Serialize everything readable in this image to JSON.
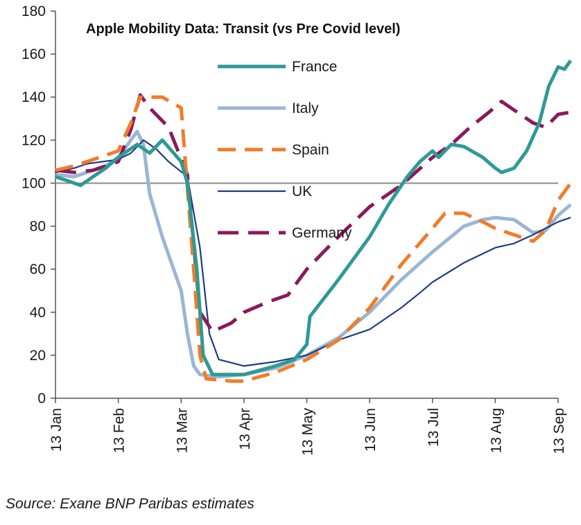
{
  "chart_data": {
    "type": "line",
    "title": "Apple Mobility Data: Transit (vs Pre Covid level)",
    "xlabel": "",
    "ylabel": "",
    "ylim": [
      0,
      180
    ],
    "yticks": [
      0,
      20,
      40,
      60,
      80,
      100,
      120,
      140,
      160,
      180
    ],
    "x_tick_labels": [
      "13 Jan",
      "13 Feb",
      "13 Mar",
      "13 Apr",
      "13 May",
      "13 Jun",
      "13 Jul",
      "13 Aug",
      "13 Sep"
    ],
    "reference_line": 100,
    "legend_position": "center-top",
    "series": [
      {
        "name": "France",
        "color": "#2e9a94",
        "style": "solid",
        "points": [
          [
            0,
            103
          ],
          [
            0.2,
            101
          ],
          [
            0.4,
            99
          ],
          [
            0.6,
            103
          ],
          [
            0.8,
            107
          ],
          [
            1.0,
            112
          ],
          [
            1.3,
            118
          ],
          [
            1.5,
            114
          ],
          [
            1.7,
            120
          ],
          [
            2.0,
            110
          ],
          [
            2.1,
            100
          ],
          [
            2.25,
            60
          ],
          [
            2.35,
            20
          ],
          [
            2.5,
            11
          ],
          [
            3.0,
            11
          ],
          [
            3.5,
            15
          ],
          [
            3.8,
            18
          ],
          [
            4.0,
            25
          ],
          [
            4.05,
            38
          ],
          [
            4.5,
            55
          ],
          [
            5.0,
            75
          ],
          [
            5.3,
            90
          ],
          [
            5.6,
            103
          ],
          [
            5.8,
            110
          ],
          [
            6.0,
            115
          ],
          [
            6.1,
            112
          ],
          [
            6.3,
            118
          ],
          [
            6.5,
            117
          ],
          [
            6.8,
            112
          ],
          [
            7.0,
            107
          ],
          [
            7.1,
            105
          ],
          [
            7.3,
            107
          ],
          [
            7.5,
            115
          ],
          [
            7.7,
            128
          ],
          [
            7.85,
            145
          ],
          [
            8.0,
            154
          ],
          [
            8.1,
            153
          ],
          [
            8.2,
            157
          ]
        ]
      },
      {
        "name": "Italy",
        "color": "#9bb5d4",
        "style": "solid",
        "points": [
          [
            0,
            104
          ],
          [
            0.3,
            103
          ],
          [
            0.5,
            105
          ],
          [
            0.8,
            108
          ],
          [
            1.0,
            112
          ],
          [
            1.3,
            124
          ],
          [
            1.4,
            118
          ],
          [
            1.5,
            95
          ],
          [
            1.7,
            75
          ],
          [
            2.0,
            50
          ],
          [
            2.1,
            30
          ],
          [
            2.2,
            15
          ],
          [
            2.3,
            11
          ],
          [
            2.6,
            10
          ],
          [
            3.0,
            11
          ],
          [
            3.5,
            14
          ],
          [
            4.0,
            20
          ],
          [
            4.5,
            28
          ],
          [
            5.0,
            40
          ],
          [
            5.5,
            55
          ],
          [
            6.0,
            68
          ],
          [
            6.5,
            80
          ],
          [
            6.8,
            83
          ],
          [
            7.0,
            84
          ],
          [
            7.3,
            83
          ],
          [
            7.6,
            77
          ],
          [
            7.8,
            78
          ],
          [
            8.0,
            85
          ],
          [
            8.2,
            90
          ]
        ]
      },
      {
        "name": "Spain",
        "color": "#f07c2a",
        "style": "dash",
        "points": [
          [
            0,
            106
          ],
          [
            0.3,
            108
          ],
          [
            0.5,
            110
          ],
          [
            0.7,
            112
          ],
          [
            1.0,
            115
          ],
          [
            1.2,
            128
          ],
          [
            1.35,
            140
          ],
          [
            1.7,
            140
          ],
          [
            2.0,
            135
          ],
          [
            2.2,
            60
          ],
          [
            2.3,
            20
          ],
          [
            2.4,
            9
          ],
          [
            2.8,
            8
          ],
          [
            3.0,
            8
          ],
          [
            3.5,
            12
          ],
          [
            4.0,
            18
          ],
          [
            4.5,
            27
          ],
          [
            5.0,
            42
          ],
          [
            5.5,
            62
          ],
          [
            6.0,
            79
          ],
          [
            6.2,
            86
          ],
          [
            6.5,
            86
          ],
          [
            6.8,
            82
          ],
          [
            7.0,
            79
          ],
          [
            7.4,
            75
          ],
          [
            7.6,
            73
          ],
          [
            7.8,
            78
          ],
          [
            8.0,
            92
          ],
          [
            8.2,
            100
          ]
        ]
      },
      {
        "name": "UK",
        "color": "#1f3c80",
        "style": "solid",
        "points": [
          [
            0,
            105
          ],
          [
            0.3,
            107
          ],
          [
            0.5,
            109
          ],
          [
            1.0,
            111
          ],
          [
            1.2,
            114
          ],
          [
            1.4,
            120
          ],
          [
            1.6,
            116
          ],
          [
            1.8,
            110
          ],
          [
            2.1,
            103
          ],
          [
            2.3,
            70
          ],
          [
            2.45,
            30
          ],
          [
            2.6,
            18
          ],
          [
            3.0,
            15
          ],
          [
            3.5,
            17
          ],
          [
            4.0,
            20
          ],
          [
            4.5,
            27
          ],
          [
            5.0,
            32
          ],
          [
            5.5,
            42
          ],
          [
            5.8,
            49
          ],
          [
            6.0,
            54
          ],
          [
            6.5,
            63
          ],
          [
            7.0,
            70
          ],
          [
            7.3,
            72
          ],
          [
            7.6,
            76
          ],
          [
            8.0,
            82
          ],
          [
            8.2,
            84
          ]
        ]
      },
      {
        "name": "Germany",
        "color": "#8b1a5c",
        "style": "dash",
        "points": [
          [
            0,
            106
          ],
          [
            0.3,
            105
          ],
          [
            0.6,
            106
          ],
          [
            1.0,
            110
          ],
          [
            1.2,
            125
          ],
          [
            1.35,
            141
          ],
          [
            1.5,
            135
          ],
          [
            1.8,
            126
          ],
          [
            2.1,
            104
          ],
          [
            2.3,
            40
          ],
          [
            2.5,
            31
          ],
          [
            2.8,
            35
          ],
          [
            3.0,
            40
          ],
          [
            3.4,
            45
          ],
          [
            3.7,
            48
          ],
          [
            4.0,
            60
          ],
          [
            4.5,
            75
          ],
          [
            5.0,
            89
          ],
          [
            5.5,
            99
          ],
          [
            6.0,
            112
          ],
          [
            6.3,
            118
          ],
          [
            6.6,
            126
          ],
          [
            6.9,
            133
          ],
          [
            7.1,
            138
          ],
          [
            7.3,
            134
          ],
          [
            7.6,
            128
          ],
          [
            7.8,
            126
          ],
          [
            8.0,
            132
          ],
          [
            8.2,
            133
          ]
        ]
      }
    ]
  },
  "source_note": "Source:  Exane BNP Paribas estimates"
}
